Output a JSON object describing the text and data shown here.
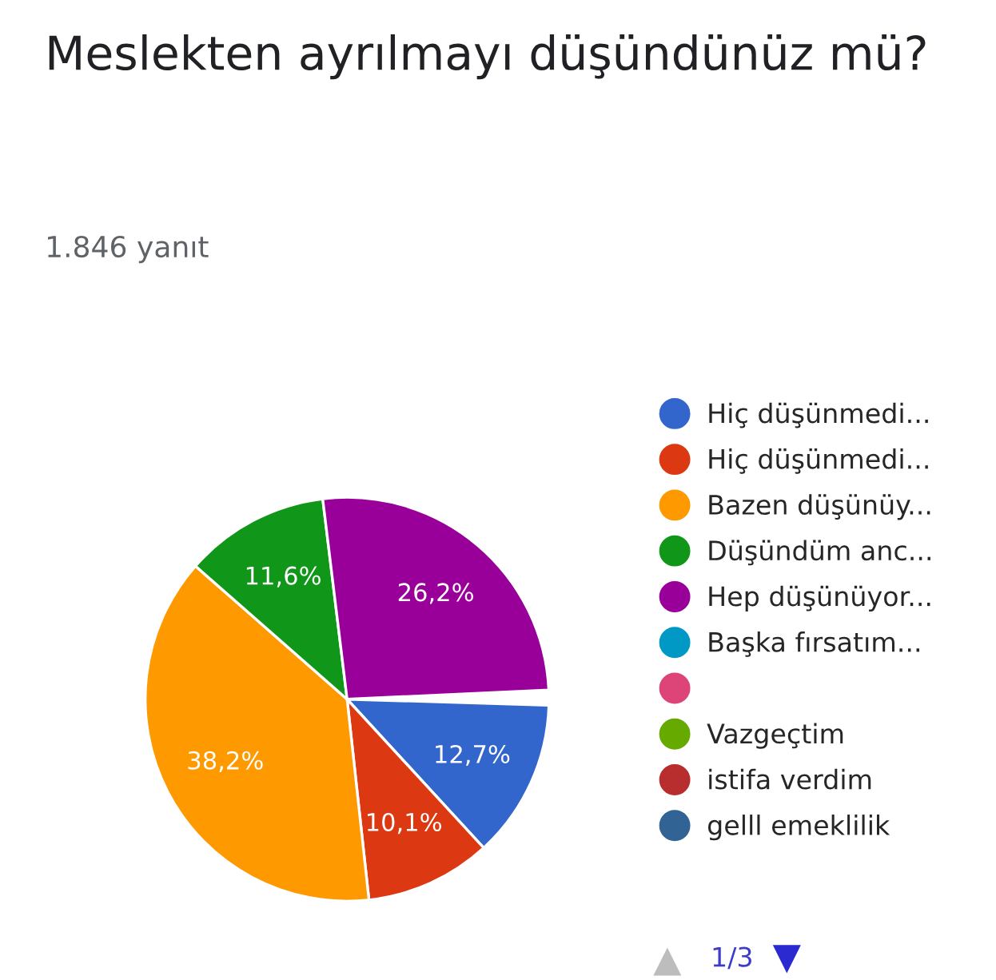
{
  "chart_data": {
    "type": "pie",
    "title": "Meslekten ayrılmayı düşündünüz mü?",
    "subtitle": "1.846 yanıt",
    "categories": [
      "Hiç düşünmedi...",
      "Hiç düşünmedi...",
      "Bazen düşünüy...",
      "Düşündüm anc...",
      "Hep düşünüyor...",
      "Başka fırsatım...",
      null,
      "Vazgeçtim",
      "istifa verdim",
      "gelll emeklilik"
    ],
    "values": [
      12.7,
      10.1,
      38.2,
      11.6,
      26.2,
      null,
      null,
      null,
      null,
      null
    ],
    "colors": [
      "#3366cc",
      "#dc3912",
      "#ff9900",
      "#109618",
      "#990099",
      "#0099c6",
      "#dd4477",
      "#66aa00",
      "#b82e2e",
      "#316395"
    ],
    "value_labels": [
      "12,7%",
      "10,1%",
      "38,2%",
      "11,6%",
      "26,2%",
      null,
      null,
      null,
      null,
      null
    ],
    "legend": "right",
    "annotations": [
      "1/3"
    ]
  }
}
